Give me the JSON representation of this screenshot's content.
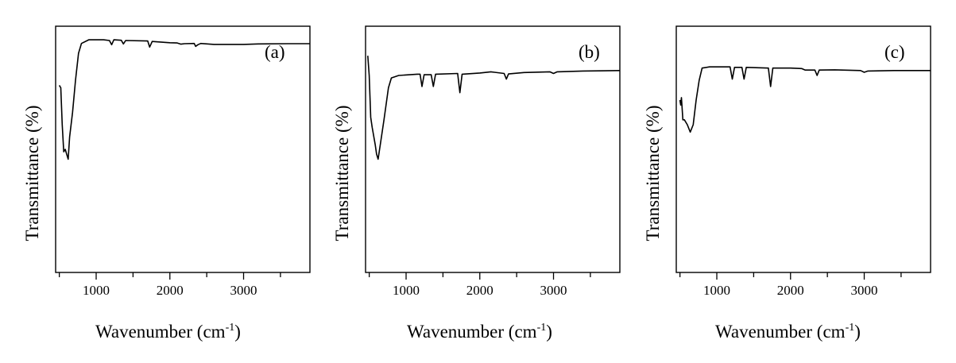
{
  "chart_data": [
    {
      "type": "line",
      "panel_label": "(a)",
      "xlabel": "Wavenumber (cm",
      "xlabel_sup": "-1",
      "xlabel_close": ")",
      "ylabel": "Transmittance (%)",
      "xlim": [
        450,
        3900
      ],
      "ylim": [
        0,
        100
      ],
      "xticks": [
        1000,
        2000,
        3000
      ],
      "xtick_labels": [
        "1000",
        "2000",
        "3000"
      ],
      "series": [
        {
          "name": "a",
          "points": [
            [
              500,
              76
            ],
            [
              520,
              75
            ],
            [
              540,
              60
            ],
            [
              560,
              49
            ],
            [
              580,
              50
            ],
            [
              600,
              48
            ],
            [
              620,
              46
            ],
            [
              640,
              55
            ],
            [
              680,
              65
            ],
            [
              720,
              78
            ],
            [
              760,
              89
            ],
            [
              800,
              93
            ],
            [
              900,
              94.5
            ],
            [
              1100,
              94.5
            ],
            [
              1180,
              94.2
            ],
            [
              1210,
              92.5
            ],
            [
              1240,
              94.5
            ],
            [
              1340,
              94.3
            ],
            [
              1370,
              92.8
            ],
            [
              1400,
              94.2
            ],
            [
              1700,
              94
            ],
            [
              1725,
              91.5
            ],
            [
              1760,
              93.8
            ],
            [
              2000,
              93.3
            ],
            [
              2100,
              93.2
            ],
            [
              2150,
              92.7
            ],
            [
              2200,
              92.9
            ],
            [
              2330,
              93
            ],
            [
              2350,
              91.8
            ],
            [
              2380,
              92.5
            ],
            [
              2420,
              93
            ],
            [
              2600,
              92.6
            ],
            [
              3000,
              92.6
            ],
            [
              3200,
              92.8
            ],
            [
              3600,
              92.9
            ],
            [
              3900,
              92.9
            ]
          ]
        }
      ]
    },
    {
      "type": "line",
      "panel_label": "(b)",
      "xlabel": "Wavenumber (cm",
      "xlabel_sup": "-1",
      "xlabel_close": ")",
      "ylabel": "Transmittance (%)",
      "xlim": [
        450,
        3900
      ],
      "ylim": [
        0,
        100
      ],
      "xticks": [
        1000,
        2000,
        3000
      ],
      "xtick_labels": [
        "1000",
        "2000",
        "3000"
      ],
      "series": [
        {
          "name": "b",
          "points": [
            [
              480,
              88
            ],
            [
              500,
              80
            ],
            [
              520,
              63
            ],
            [
              540,
              59
            ],
            [
              580,
              52
            ],
            [
              600,
              48
            ],
            [
              620,
              46
            ],
            [
              650,
              52
            ],
            [
              700,
              62
            ],
            [
              760,
              75
            ],
            [
              800,
              79
            ],
            [
              900,
              80
            ],
            [
              1150,
              80.5
            ],
            [
              1190,
              80.5
            ],
            [
              1215,
              75.5
            ],
            [
              1245,
              80.3
            ],
            [
              1340,
              80.3
            ],
            [
              1370,
              75.5
            ],
            [
              1400,
              80.5
            ],
            [
              1700,
              80.8
            ],
            [
              1730,
              73
            ],
            [
              1760,
              80.5
            ],
            [
              2000,
              81
            ],
            [
              2150,
              81.5
            ],
            [
              2200,
              81.3
            ],
            [
              2330,
              80.8
            ],
            [
              2360,
              78.5
            ],
            [
              2390,
              80.6
            ],
            [
              2600,
              81.2
            ],
            [
              2950,
              81.5
            ],
            [
              3000,
              80.8
            ],
            [
              3050,
              81.5
            ],
            [
              3400,
              81.8
            ],
            [
              3900,
              82
            ]
          ]
        }
      ]
    },
    {
      "type": "line",
      "panel_label": "(c)",
      "xlabel": "Wavenumber (cm",
      "xlabel_sup": "-1",
      "xlabel_close": ")",
      "ylabel": "Transmittance (%)",
      "xlim": [
        450,
        3900
      ],
      "ylim": [
        0,
        100
      ],
      "xticks": [
        1000,
        2000,
        3000
      ],
      "xtick_labels": [
        "1000",
        "2000",
        "3000"
      ],
      "series": [
        {
          "name": "c",
          "points": [
            [
              500,
              70
            ],
            [
              510,
              68
            ],
            [
              520,
              71
            ],
            [
              540,
              62
            ],
            [
              560,
              62
            ],
            [
              600,
              60
            ],
            [
              640,
              57
            ],
            [
              680,
              60
            ],
            [
              720,
              70
            ],
            [
              760,
              78
            ],
            [
              800,
              83
            ],
            [
              900,
              83.5
            ],
            [
              1180,
              83.5
            ],
            [
              1210,
              78.5
            ],
            [
              1240,
              83.3
            ],
            [
              1340,
              83.3
            ],
            [
              1370,
              78.5
            ],
            [
              1400,
              83.3
            ],
            [
              1700,
              83
            ],
            [
              1730,
              75.5
            ],
            [
              1760,
              83
            ],
            [
              2000,
              83
            ],
            [
              2150,
              82.8
            ],
            [
              2200,
              82.2
            ],
            [
              2330,
              82.2
            ],
            [
              2360,
              80
            ],
            [
              2390,
              82.2
            ],
            [
              2600,
              82.3
            ],
            [
              2950,
              82
            ],
            [
              3000,
              81.3
            ],
            [
              3050,
              81.8
            ],
            [
              3400,
              82
            ],
            [
              3900,
              82
            ]
          ]
        }
      ]
    }
  ]
}
